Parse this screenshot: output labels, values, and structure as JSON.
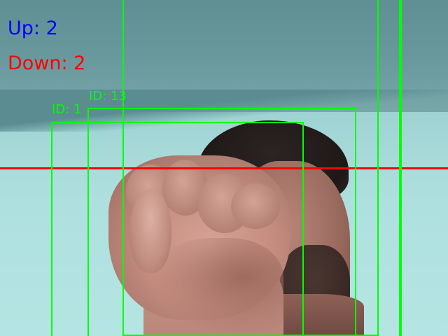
{
  "counters": {
    "up": "Up: 2",
    "down": "Down: 2"
  },
  "detections": [
    {
      "label": "ID: 1"
    },
    {
      "label": "ID: 13"
    }
  ],
  "colors": {
    "box": "#00ff00",
    "line": "#ff0000",
    "up_text": "#0000ff",
    "down_text": "#ff0000"
  }
}
